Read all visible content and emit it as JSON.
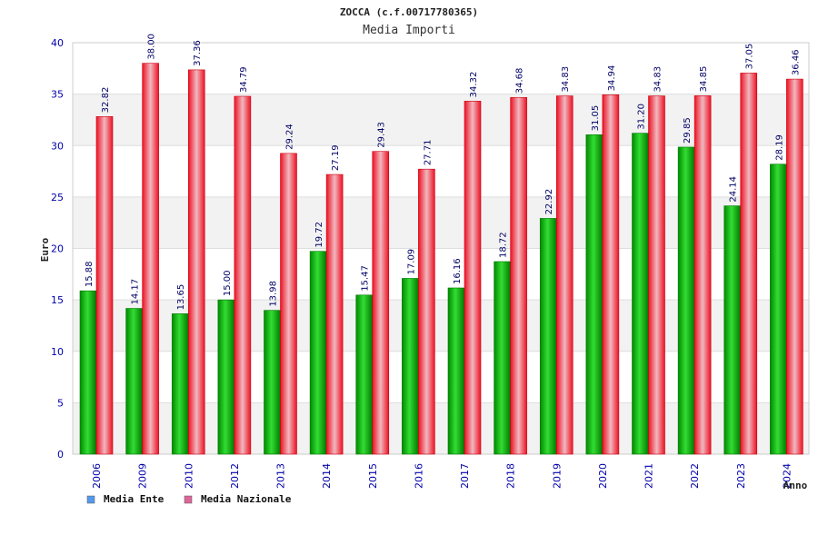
{
  "chart_data": {
    "type": "bar",
    "title": "ZOCCA (c.f.00717780365)",
    "subtitle": "Media Importi",
    "xlabel": "Anno",
    "ylabel": "Euro",
    "categories": [
      "2006",
      "2009",
      "2010",
      "2012",
      "2013",
      "2014",
      "2015",
      "2016",
      "2017",
      "2018",
      "2019",
      "2020",
      "2021",
      "2022",
      "2023",
      "2024"
    ],
    "series": [
      {
        "name": "Media Ente",
        "values": [
          15.88,
          14.17,
          13.65,
          15.0,
          13.98,
          19.72,
          15.47,
          17.09,
          16.16,
          18.72,
          22.92,
          31.05,
          31.2,
          29.85,
          24.14,
          28.19
        ],
        "labels": [
          "15.88",
          "14.17",
          "13.65",
          "15.00",
          "13.98",
          "19.72",
          "15.47",
          "17.09",
          "16.16",
          "18.72",
          "22.92",
          "31.05",
          "31.20",
          "29.85",
          "24.14",
          "28.19"
        ],
        "color": "#00b000"
      },
      {
        "name": "Media Nazionale",
        "values": [
          32.82,
          38.0,
          37.36,
          34.79,
          29.24,
          27.19,
          29.43,
          27.71,
          34.32,
          34.68,
          34.83,
          34.94,
          34.83,
          34.85,
          37.05,
          36.46
        ],
        "labels": [
          "32.82",
          "38.00",
          "37.36",
          "34.79",
          "29.24",
          "27.19",
          "29.43",
          "27.71",
          "34.32",
          "34.68",
          "34.83",
          "34.94",
          "34.83",
          "34.85",
          "37.05",
          "36.46"
        ],
        "color": "#ee0000"
      }
    ],
    "ylim": [
      0,
      40
    ],
    "yticks": [
      0,
      5,
      10,
      15,
      20,
      25,
      30,
      35,
      40
    ],
    "grid": true,
    "legend_position": "bottom-left",
    "legend": [
      {
        "label": "Media Ente",
        "swatch_color": "#5599ee"
      },
      {
        "label": "Media Nazionale",
        "swatch_color": "#dd6699"
      }
    ],
    "colors": {
      "tick_label": "#0000aa",
      "value_label": "#000066",
      "band_light": "#f2f2f2",
      "band_white": "#ffffff",
      "frame": "#cccccc"
    }
  }
}
